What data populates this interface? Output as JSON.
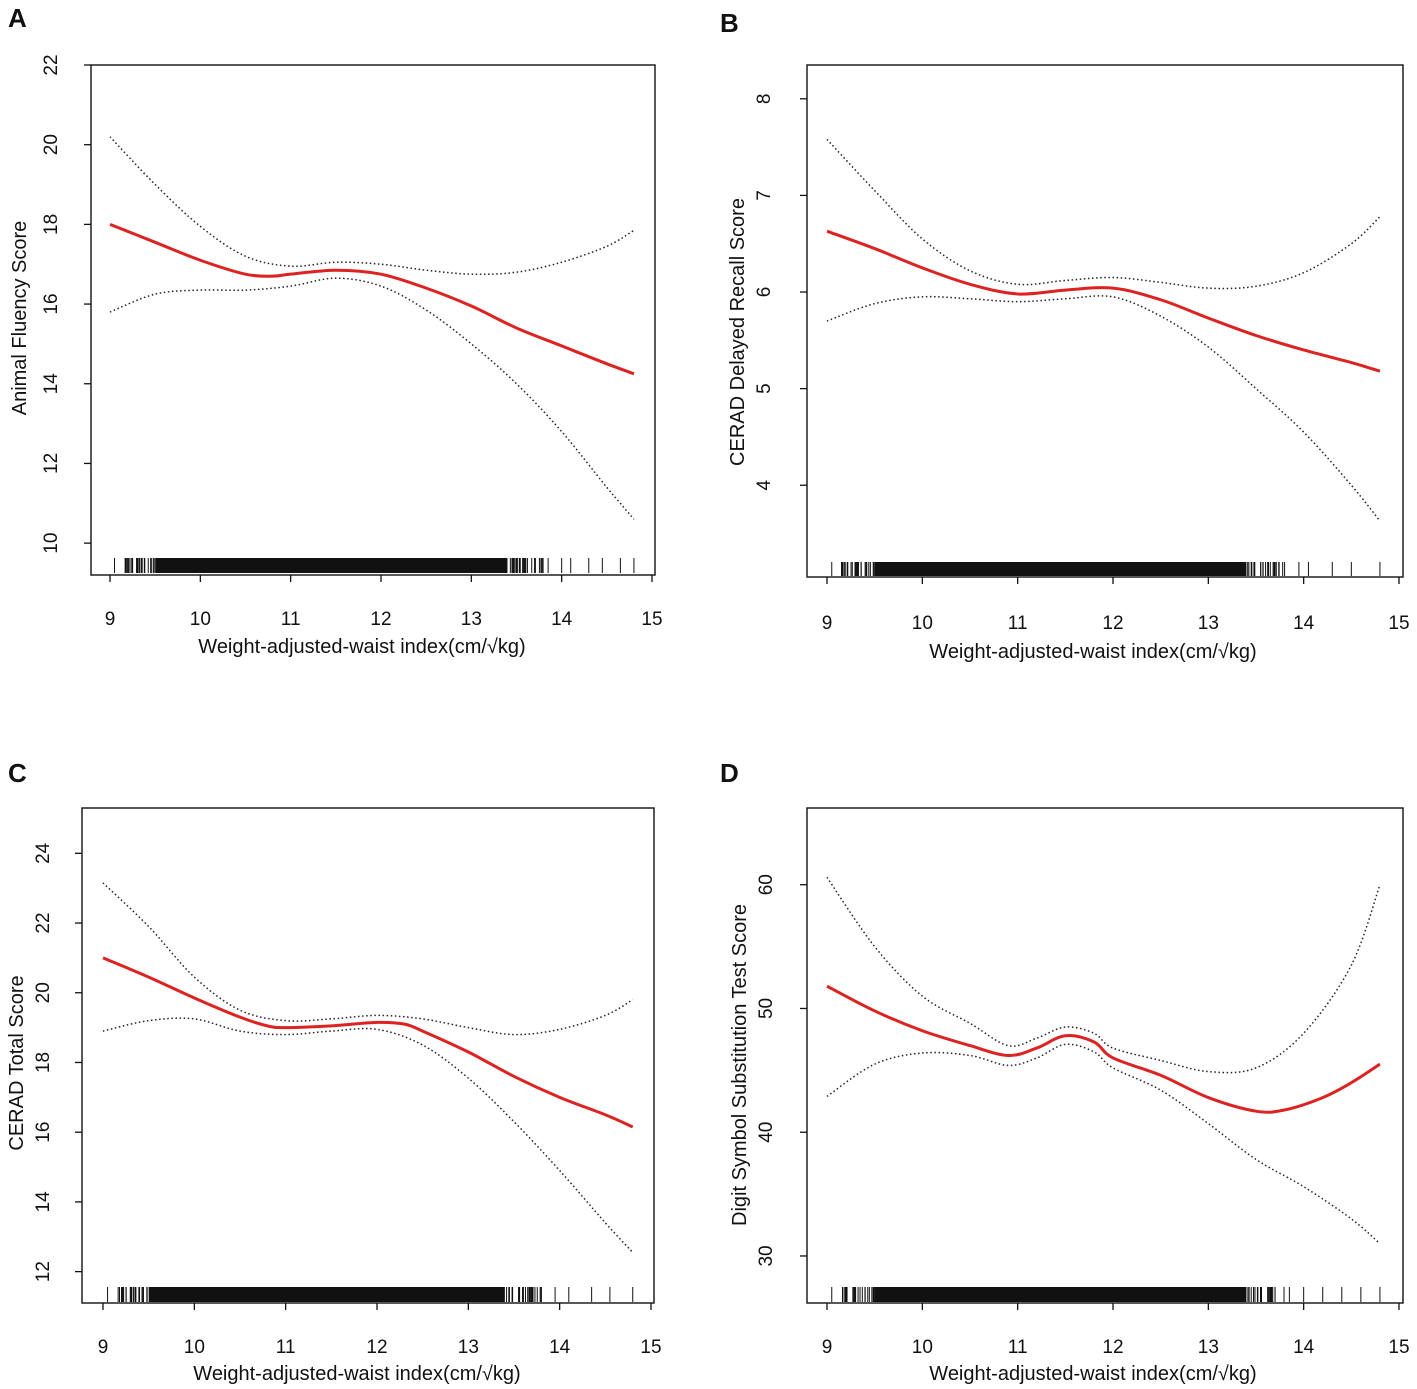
{
  "chart_data": [
    {
      "type": "line",
      "panel_letter": "A",
      "xlabel": "Weight-adjusted-waist index(cm/√kg)",
      "ylabel": "Animal Fluency Score",
      "xlim": [
        9,
        15
      ],
      "ylim": [
        9.2,
        22
      ],
      "xticks": [
        9,
        10,
        11,
        12,
        13,
        14,
        15
      ],
      "yticks": [
        10,
        12,
        14,
        16,
        18,
        20,
        22
      ],
      "series": [
        {
          "name": "estimate",
          "style": "solid",
          "color": "#dd2222",
          "x": [
            9.0,
            9.5,
            10.0,
            10.5,
            10.8,
            11.0,
            11.5,
            12.0,
            12.5,
            13.0,
            13.5,
            14.0,
            14.5,
            14.8
          ],
          "y": [
            18.0,
            17.55,
            17.1,
            16.75,
            16.7,
            16.75,
            16.85,
            16.75,
            16.4,
            15.95,
            15.4,
            14.95,
            14.5,
            14.25
          ]
        },
        {
          "name": "upper 95% CI",
          "style": "dotted",
          "color": "#222222",
          "x": [
            9.0,
            9.5,
            10.0,
            10.5,
            11.0,
            11.5,
            12.0,
            12.5,
            13.0,
            13.5,
            14.0,
            14.5,
            14.8
          ],
          "y": [
            20.2,
            19.0,
            17.95,
            17.2,
            16.95,
            17.05,
            17.0,
            16.85,
            16.75,
            16.8,
            17.05,
            17.45,
            17.85
          ]
        },
        {
          "name": "lower 95% CI",
          "style": "dotted",
          "color": "#222222",
          "x": [
            9.0,
            9.5,
            10.0,
            10.5,
            11.0,
            11.5,
            12.0,
            12.5,
            13.0,
            13.5,
            14.0,
            14.5,
            14.8
          ],
          "y": [
            15.8,
            16.25,
            16.35,
            16.35,
            16.45,
            16.65,
            16.45,
            15.85,
            15.0,
            14.0,
            12.8,
            11.4,
            10.6
          ]
        }
      ],
      "rug": {
        "dense_from": 9.5,
        "dense_to": 13.4,
        "sparse": [
          9.05,
          9.25,
          9.35,
          9.45,
          13.45,
          13.5,
          13.6,
          13.7,
          13.85,
          14.0,
          14.1,
          14.3,
          14.45,
          14.65,
          14.8
        ]
      }
    },
    {
      "type": "line",
      "panel_letter": "B",
      "xlabel": "Weight-adjusted-waist index(cm/√kg)",
      "ylabel": "CERAD Delayed Recall Score",
      "xlim": [
        9,
        15
      ],
      "ylim": [
        3.05,
        8.35
      ],
      "xticks": [
        9,
        10,
        11,
        12,
        13,
        14,
        15
      ],
      "yticks": [
        4,
        5,
        6,
        7,
        8
      ],
      "series": [
        {
          "name": "estimate",
          "style": "solid",
          "color": "#dd2222",
          "x": [
            9.0,
            9.5,
            10.0,
            10.5,
            11.0,
            11.5,
            12.0,
            12.5,
            13.0,
            13.5,
            14.0,
            14.5,
            14.8
          ],
          "y": [
            6.63,
            6.45,
            6.25,
            6.08,
            5.98,
            6.02,
            6.04,
            5.92,
            5.73,
            5.55,
            5.4,
            5.27,
            5.18
          ]
        },
        {
          "name": "upper 95% CI",
          "style": "dotted",
          "color": "#222222",
          "x": [
            9.0,
            9.5,
            10.0,
            10.5,
            11.0,
            11.5,
            12.0,
            12.5,
            13.0,
            13.5,
            14.0,
            14.5,
            14.8
          ],
          "y": [
            7.58,
            7.05,
            6.55,
            6.22,
            6.08,
            6.12,
            6.15,
            6.1,
            6.04,
            6.06,
            6.2,
            6.5,
            6.78
          ]
        },
        {
          "name": "lower 95% CI",
          "style": "dotted",
          "color": "#222222",
          "x": [
            9.0,
            9.5,
            10.0,
            10.5,
            11.0,
            11.5,
            12.0,
            12.5,
            13.0,
            13.5,
            14.0,
            14.5,
            14.8
          ],
          "y": [
            5.7,
            5.88,
            5.95,
            5.93,
            5.9,
            5.93,
            5.95,
            5.75,
            5.43,
            5.0,
            4.55,
            4.0,
            3.63
          ]
        }
      ],
      "rug": {
        "dense_from": 9.5,
        "dense_to": 13.4,
        "sparse": [
          9.05,
          9.3,
          9.4,
          13.45,
          13.55,
          13.65,
          13.8,
          13.95,
          14.05,
          14.3,
          14.5,
          14.8
        ]
      }
    },
    {
      "type": "line",
      "panel_letter": "C",
      "xlabel": "Weight-adjusted-waist index(cm/√kg)",
      "ylabel": "CERAD Total Score",
      "xlim": [
        9,
        15
      ],
      "ylim": [
        11.1,
        25.3
      ],
      "xticks": [
        9,
        10,
        11,
        12,
        13,
        14,
        15
      ],
      "yticks": [
        12,
        14,
        16,
        18,
        20,
        22,
        24
      ],
      "series": [
        {
          "name": "estimate",
          "style": "solid",
          "color": "#dd2222",
          "x": [
            9.0,
            9.5,
            10.0,
            10.5,
            10.8,
            11.0,
            11.5,
            12.0,
            12.3,
            12.5,
            13.0,
            13.5,
            14.0,
            14.5,
            14.8
          ],
          "y": [
            21.0,
            20.45,
            19.85,
            19.3,
            19.05,
            19.0,
            19.05,
            19.15,
            19.1,
            18.9,
            18.3,
            17.6,
            17.0,
            16.5,
            16.15
          ]
        },
        {
          "name": "upper 95% CI",
          "style": "dotted",
          "color": "#222222",
          "x": [
            9.0,
            9.5,
            10.0,
            10.5,
            11.0,
            11.5,
            12.0,
            12.5,
            13.0,
            13.5,
            14.0,
            14.5,
            14.8
          ],
          "y": [
            23.15,
            21.9,
            20.45,
            19.5,
            19.2,
            19.25,
            19.35,
            19.25,
            19.0,
            18.8,
            18.95,
            19.35,
            19.8
          ]
        },
        {
          "name": "lower 95% CI",
          "style": "dotted",
          "color": "#222222",
          "x": [
            9.0,
            9.5,
            10.0,
            10.5,
            11.0,
            11.5,
            12.0,
            12.5,
            13.0,
            13.5,
            14.0,
            14.5,
            14.8
          ],
          "y": [
            18.9,
            19.2,
            19.25,
            18.9,
            18.8,
            18.9,
            18.95,
            18.5,
            17.55,
            16.3,
            14.9,
            13.4,
            12.55
          ]
        }
      ],
      "rug": {
        "dense_from": 9.5,
        "dense_to": 13.4,
        "sparse": [
          9.05,
          9.3,
          9.4,
          13.45,
          13.55,
          13.65,
          13.8,
          13.95,
          14.1,
          14.35,
          14.55,
          14.8
        ]
      }
    },
    {
      "type": "line",
      "panel_letter": "D",
      "xlabel": "Weight-adjusted-waist index(cm/√kg)",
      "ylabel": "Digit Symbol Substitution Test Score",
      "xlim": [
        9,
        15
      ],
      "ylim": [
        26.2,
        66.2
      ],
      "xticks": [
        9,
        10,
        11,
        12,
        13,
        14,
        15
      ],
      "yticks": [
        30,
        40,
        50,
        60
      ],
      "series": [
        {
          "name": "estimate",
          "style": "solid",
          "color": "#dd2222",
          "x": [
            9.0,
            9.5,
            10.0,
            10.5,
            10.9,
            11.2,
            11.5,
            11.8,
            12.0,
            12.5,
            13.0,
            13.5,
            13.8,
            14.2,
            14.5,
            14.8
          ],
          "y": [
            51.8,
            49.8,
            48.2,
            47.0,
            46.2,
            46.8,
            47.8,
            47.3,
            46.0,
            44.6,
            42.8,
            41.7,
            41.8,
            42.8,
            44.0,
            45.5
          ]
        },
        {
          "name": "upper 95% CI",
          "style": "dotted",
          "color": "#222222",
          "x": [
            9.0,
            9.5,
            10.0,
            10.5,
            10.9,
            11.2,
            11.5,
            11.8,
            12.0,
            12.5,
            13.0,
            13.5,
            14.0,
            14.5,
            14.8
          ],
          "y": [
            60.6,
            55.0,
            51.0,
            48.8,
            47.0,
            47.6,
            48.5,
            48.0,
            46.8,
            45.8,
            44.9,
            45.2,
            48.0,
            53.5,
            60.0
          ]
        },
        {
          "name": "lower 95% CI",
          "style": "dotted",
          "color": "#222222",
          "x": [
            9.0,
            9.5,
            10.0,
            10.5,
            10.9,
            11.2,
            11.5,
            11.8,
            12.0,
            12.5,
            13.0,
            13.5,
            14.0,
            14.5,
            14.8
          ],
          "y": [
            42.9,
            45.5,
            46.4,
            46.2,
            45.4,
            46.0,
            47.1,
            46.5,
            45.2,
            43.4,
            40.7,
            37.8,
            35.6,
            33.0,
            31.0
          ]
        }
      ],
      "rug": {
        "dense_from": 9.5,
        "dense_to": 13.4,
        "sparse": [
          9.05,
          9.3,
          9.4,
          13.45,
          13.55,
          13.7,
          13.85,
          14.0,
          14.2,
          14.4,
          14.6,
          14.8
        ]
      }
    }
  ]
}
